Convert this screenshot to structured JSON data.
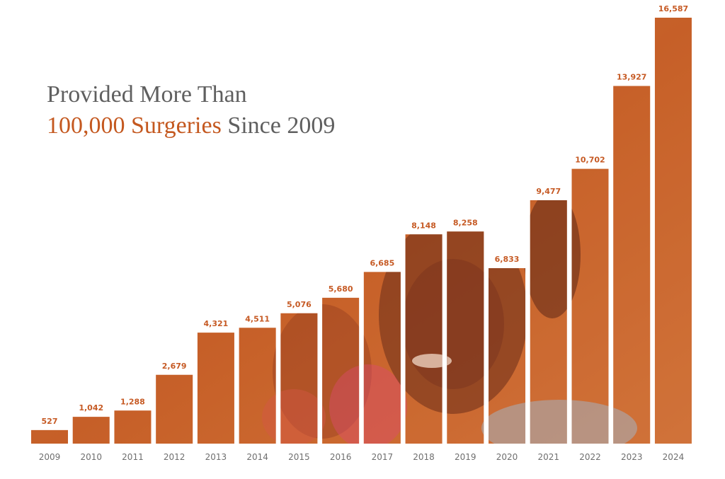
{
  "title": {
    "line1": "Provided More Than",
    "line2_highlight": "100,000 Surgeries",
    "line2_rest": " Since 2009"
  },
  "colors": {
    "accent": "#c4581f",
    "bar_fill": "#c9662e",
    "label": "#c65a24",
    "tick": "#6f6f6f",
    "title": "#5f5f5f"
  },
  "chart_data": {
    "type": "bar",
    "title": "Provided More Than 100,000 Surgeries Since 2009",
    "categories": [
      "2009",
      "2010",
      "2011",
      "2012",
      "2013",
      "2014",
      "2015",
      "2016",
      "2017",
      "2018",
      "2019",
      "2020",
      "2021",
      "2022",
      "2023",
      "2024"
    ],
    "values": [
      527,
      1042,
      1288,
      2679,
      4321,
      4511,
      5076,
      5680,
      6685,
      8148,
      8258,
      6833,
      9477,
      10702,
      13927,
      16587
    ],
    "value_labels": [
      "527",
      "1,042",
      "1,288",
      "2,679",
      "4,321",
      "4,511",
      "5,076",
      "5,680",
      "6,685",
      "8,148",
      "8,258",
      "6,833",
      "9,477",
      "10,702",
      "13,927",
      "16,587"
    ],
    "xlabel": "",
    "ylabel": "",
    "ylim": [
      0,
      17500
    ],
    "grid": false,
    "legend": "none"
  }
}
